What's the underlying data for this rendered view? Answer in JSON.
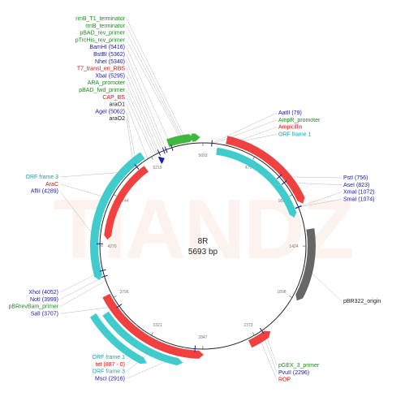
{
  "watermark": "TIANDZ",
  "plasmid": {
    "name": "8R",
    "size_label": "5693 bp",
    "total_bp": 5693
  },
  "colors": {
    "green": "#2aa02a",
    "blue": "#1a1aa0",
    "red": "#e02020",
    "cyan": "#1ab0b0",
    "feature_red": "#f04040",
    "feature_cyan": "#40cccc",
    "feature_green": "#40b840",
    "feature_gray": "#666666",
    "feature_blue": "#2222aa"
  },
  "ticks": [
    {
      "bp": 0,
      "label": "5693"
    },
    {
      "bp": 475,
      "label": "475"
    },
    {
      "bp": 950,
      "label": "950"
    },
    {
      "bp": 1424,
      "label": "1424"
    },
    {
      "bp": 1898,
      "label": "1898"
    },
    {
      "bp": 2373,
      "label": "2373"
    },
    {
      "bp": 2847,
      "label": "2847"
    },
    {
      "bp": 3321,
      "label": "3321"
    },
    {
      "bp": 3796,
      "label": "3796"
    },
    {
      "bp": 4270,
      "label": "4270"
    },
    {
      "bp": 4744,
      "label": "4744"
    },
    {
      "bp": 5219,
      "label": "5219"
    }
  ],
  "features": [
    {
      "name": "ampicillin",
      "start": 200,
      "end": 1060,
      "ring": "outer",
      "color": "feature_red",
      "dir": 1
    },
    {
      "name": "orf-frame-1-top",
      "start": 130,
      "end": 1150,
      "ring": "inner",
      "color": "feature_cyan",
      "dir": 1
    },
    {
      "name": "pbr322-origin",
      "start": 1280,
      "end": 1900,
      "ring": "outer",
      "color": "feature_gray",
      "dir": 1
    },
    {
      "name": "rop",
      "start": 2240,
      "end": 2440,
      "ring": "outer",
      "color": "feature_red",
      "dir": -1
    },
    {
      "name": "tet",
      "start": 2840,
      "end": 3840,
      "ring": "outer",
      "color": "feature_red",
      "dir": -1
    },
    {
      "name": "orf-frame-1-bottom",
      "start": 3000,
      "end": 3720,
      "ring": "inner2",
      "color": "feature_cyan",
      "dir": -1
    },
    {
      "name": "orf-frame-3-bottom",
      "start": 3250,
      "end": 3760,
      "ring": "inner3",
      "color": "feature_cyan",
      "dir": -1
    },
    {
      "name": "arac",
      "start": 4330,
      "end": 5120,
      "ring": "inner",
      "color": "feature_red",
      "dir": -1
    },
    {
      "name": "orf-frame-3-left",
      "start": 3980,
      "end": 5160,
      "ring": "outer",
      "color": "feature_cyan",
      "dir": -1
    },
    {
      "name": "ara-promoter",
      "start": 5395,
      "end": 5560,
      "ring": "outer",
      "color": "feature_green",
      "dir": 1
    },
    {
      "name": "rrnb-terminator",
      "start": 5520,
      "end": 5620,
      "ring": "outer",
      "color": "feature_green",
      "dir": 1
    },
    {
      "name": "small-feature",
      "start": 5600,
      "end": 5670,
      "ring": "outer",
      "color": "feature_green",
      "dir": 1
    },
    {
      "name": "blue-small",
      "start": 5270,
      "end": 5320,
      "ring": "inner",
      "color": "feature_blue",
      "dir": 1
    }
  ],
  "labels_top": [
    {
      "text": "rrnB_T1_terminator",
      "color": "green",
      "bp": 5560
    },
    {
      "text": "rrnB_terminator",
      "color": "green",
      "bp": 5540
    },
    {
      "text": "pBAD_rev_primer",
      "color": "green",
      "bp": 5530
    },
    {
      "text": "pTrcHis_rev_primer",
      "color": "green",
      "bp": 5520
    },
    {
      "text": "BamHI (5416)",
      "color": "blue",
      "bp": 5416
    },
    {
      "text": "BstBI (5362)",
      "color": "blue",
      "bp": 5362
    },
    {
      "text": "NheI (5340)",
      "color": "blue",
      "bp": 5340
    },
    {
      "text": "T7_transl_en_RBS",
      "color": "red",
      "bp": 5320
    },
    {
      "text": "XbaI (5295)",
      "color": "blue",
      "bp": 5295
    },
    {
      "text": "ARA_promoter",
      "color": "green",
      "bp": 5280
    },
    {
      "text": "pBAD_fwd_primer",
      "color": "green",
      "bp": 5260
    },
    {
      "text": "CAP_BS",
      "color": "red",
      "bp": 5240
    },
    {
      "text": "araO1",
      "color": "dark",
      "bp": 5180
    },
    {
      "text": "AgeI (5062)",
      "color": "blue",
      "bp": 5062
    },
    {
      "text": "araO2",
      "color": "dark",
      "bp": 5030
    }
  ],
  "labels_right_top": [
    {
      "text": "AatII (79)",
      "color": "blue",
      "bp": 79
    },
    {
      "text": "AmpR_promoter",
      "color": "green",
      "bp": 100
    },
    {
      "text": "Ampicillin",
      "color": "red",
      "bp": 200
    },
    {
      "text": "ORF frame 1",
      "color": "cyan",
      "bp": 180
    }
  ],
  "labels_right_mid": [
    {
      "text": "PstI (756)",
      "color": "blue",
      "bp": 756
    },
    {
      "text": "AseI (823)",
      "color": "blue",
      "bp": 823
    },
    {
      "text": "XmaI (1072)",
      "color": "blue",
      "bp": 1072
    },
    {
      "text": "SmaI (1074)",
      "color": "blue",
      "bp": 1074
    }
  ],
  "label_origin": {
    "text": "pBR322_origin",
    "color": "dark",
    "bp": 1600
  },
  "labels_right_bottom": [
    {
      "text": "pGEX_3_primer",
      "color": "green",
      "bp": 2270
    },
    {
      "text": "PvuII (2296)",
      "color": "blue",
      "bp": 2296
    },
    {
      "text": "ROP",
      "color": "red",
      "bp": 2340
    }
  ],
  "labels_left_top": [
    {
      "text": "ORF frame 3",
      "color": "cyan",
      "bp": 5000
    },
    {
      "text": "AraC",
      "color": "red",
      "bp": 4700
    },
    {
      "text": "AflII (4289)",
      "color": "blue",
      "bp": 4289
    }
  ],
  "labels_left_bottom": [
    {
      "text": "XhoI (4052)",
      "color": "blue",
      "bp": 4052
    },
    {
      "text": "NotI (3999)",
      "color": "blue",
      "bp": 3999
    },
    {
      "text": "pBRrevBam_primer",
      "color": "green",
      "bp": 3960
    },
    {
      "text": "SalI (3707)",
      "color": "blue",
      "bp": 3707
    }
  ],
  "labels_bottom": [
    {
      "text": "ORF frame 1",
      "color": "cyan",
      "bp": 3400
    },
    {
      "text": "tet (887 - 0)",
      "color": "red",
      "bp": 3300
    },
    {
      "text": "ORF frame 3",
      "color": "cyan",
      "bp": 3200
    },
    {
      "text": "MscI (2916)",
      "color": "blue",
      "bp": 2916
    }
  ]
}
